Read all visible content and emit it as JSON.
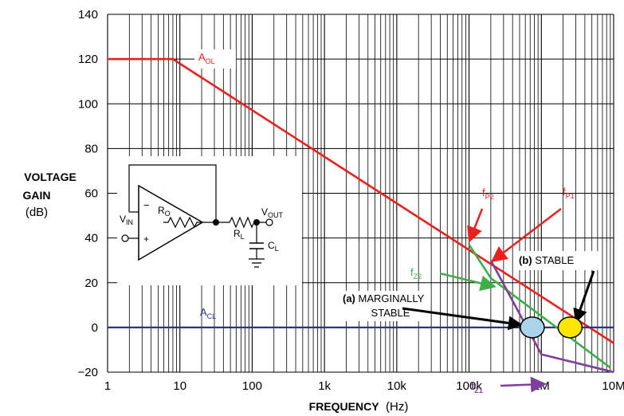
{
  "chart_data": {
    "type": "line",
    "xlabel": "FREQUENCY",
    "xunit": "(Hz)",
    "ylabel_line1": "VOLTAGE",
    "ylabel_line2": "GAIN",
    "yunit": "(dB)",
    "x_scale": "log",
    "xlim": [
      1,
      10000000
    ],
    "ylim": [
      -20,
      140
    ],
    "grid": true,
    "x_ticks": [
      {
        "value": 1,
        "label": "1"
      },
      {
        "value": 10,
        "label": "10"
      },
      {
        "value": 100,
        "label": "100"
      },
      {
        "value": 1000,
        "label": "1k"
      },
      {
        "value": 10000,
        "label": "10k"
      },
      {
        "value": 100000,
        "label": "100k"
      },
      {
        "value": 1000000,
        "label": "1M"
      },
      {
        "value": 10000000,
        "label": "10M"
      }
    ],
    "y_ticks": [
      {
        "value": -20,
        "label": "−20"
      },
      {
        "value": 0,
        "label": "0"
      },
      {
        "value": 20,
        "label": "20"
      },
      {
        "value": 40,
        "label": "40"
      },
      {
        "value": 60,
        "label": "60"
      },
      {
        "value": 80,
        "label": "80"
      },
      {
        "value": 100,
        "label": "100"
      },
      {
        "value": 120,
        "label": "120"
      },
      {
        "value": 140,
        "label": "140"
      }
    ],
    "series": [
      {
        "name": "A_OL",
        "color": "#e8211f",
        "x": [
          1,
          8,
          10000000
        ],
        "y": [
          120,
          120,
          -7
        ]
      },
      {
        "name": "A_CL",
        "color": "#2e3192",
        "x": [
          1,
          10000000
        ],
        "y": [
          0,
          0
        ]
      },
      {
        "name": "f_Z2",
        "color": "#3fae49",
        "x": [
          100000,
          200000,
          9000000
        ],
        "y": [
          37,
          22,
          -18
        ]
      },
      {
        "name": "f_Z1",
        "color": "#7e3f98",
        "x": [
          200000,
          1000000,
          10000000
        ],
        "y": [
          30,
          -12,
          -30
        ]
      }
    ],
    "markers": [
      {
        "x": 750000,
        "y": 0,
        "fill": "#a9d4ea"
      },
      {
        "x": 2500000,
        "y": 0,
        "fill": "#ffe600"
      }
    ],
    "labels": {
      "aol_main": "A",
      "aol_sub": "OL",
      "acl_main": "A",
      "acl_sub": "CL",
      "fp2_main": "f",
      "fp2_sub": "P2",
      "fp1_main": "f",
      "fp1_sub": "P1",
      "fz2_main": "f",
      "fz2_sub": "Z2",
      "fz1_main": "f",
      "fz1_sub": "Z1",
      "marg_bold": "(a)",
      "marg_line1": " MARGINALLY",
      "marg_line2": "STABLE",
      "stable_bold": "(b)",
      "stable_text": " STABLE"
    },
    "circuit": {
      "vin_main": "V",
      "vin_sub": "IN",
      "ro_main": "R",
      "ro_sub": "O",
      "rl_main": "R",
      "rl_sub": "L",
      "cl_main": "C",
      "cl_sub": "L",
      "vout_main": "V",
      "vout_sub": "OUT",
      "minus": "−",
      "plus": "+"
    }
  }
}
